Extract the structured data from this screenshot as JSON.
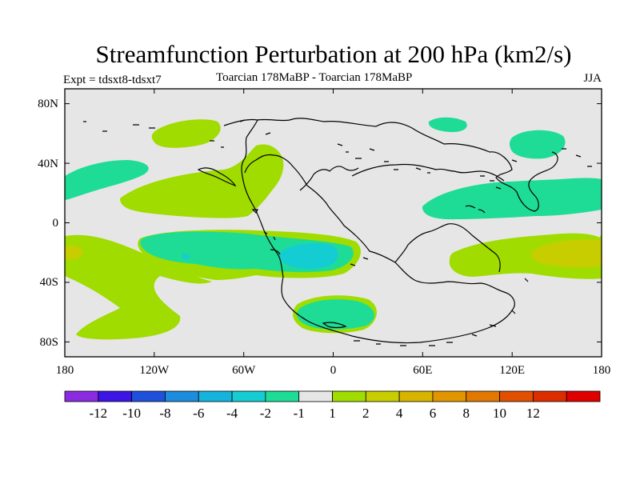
{
  "figure": {
    "title": "Streamfunction Perturbation at 200 hPa (km2/s)",
    "left_subtitle": "Expt = tdsxt8-tdsxt7",
    "center_subtitle": "Toarcian 178MaBP - Toarcian 178MaBP",
    "right_subtitle": "JJA"
  },
  "axes": {
    "lat_ticks": [
      "80N",
      "40N",
      "0",
      "40S",
      "80S"
    ],
    "lon_ticks": [
      "180",
      "120W",
      "60W",
      "0",
      "60E",
      "120E",
      "180"
    ]
  },
  "colorbar": {
    "colors": [
      "#8a2be2",
      "#3c14e6",
      "#1e50dc",
      "#1e8cdc",
      "#14b4dc",
      "#14cdd2",
      "#1edc96",
      "#e6e6e6",
      "#a0dc00",
      "#c8cd00",
      "#d7b400",
      "#e19600",
      "#e17800",
      "#e15000",
      "#dc2d00",
      "#e10000"
    ],
    "labels": [
      "-12",
      "-10",
      "-8",
      "-6",
      "-4",
      "-2",
      "-1",
      "1",
      "2",
      "4",
      "6",
      "8",
      "10",
      "12"
    ]
  }
}
